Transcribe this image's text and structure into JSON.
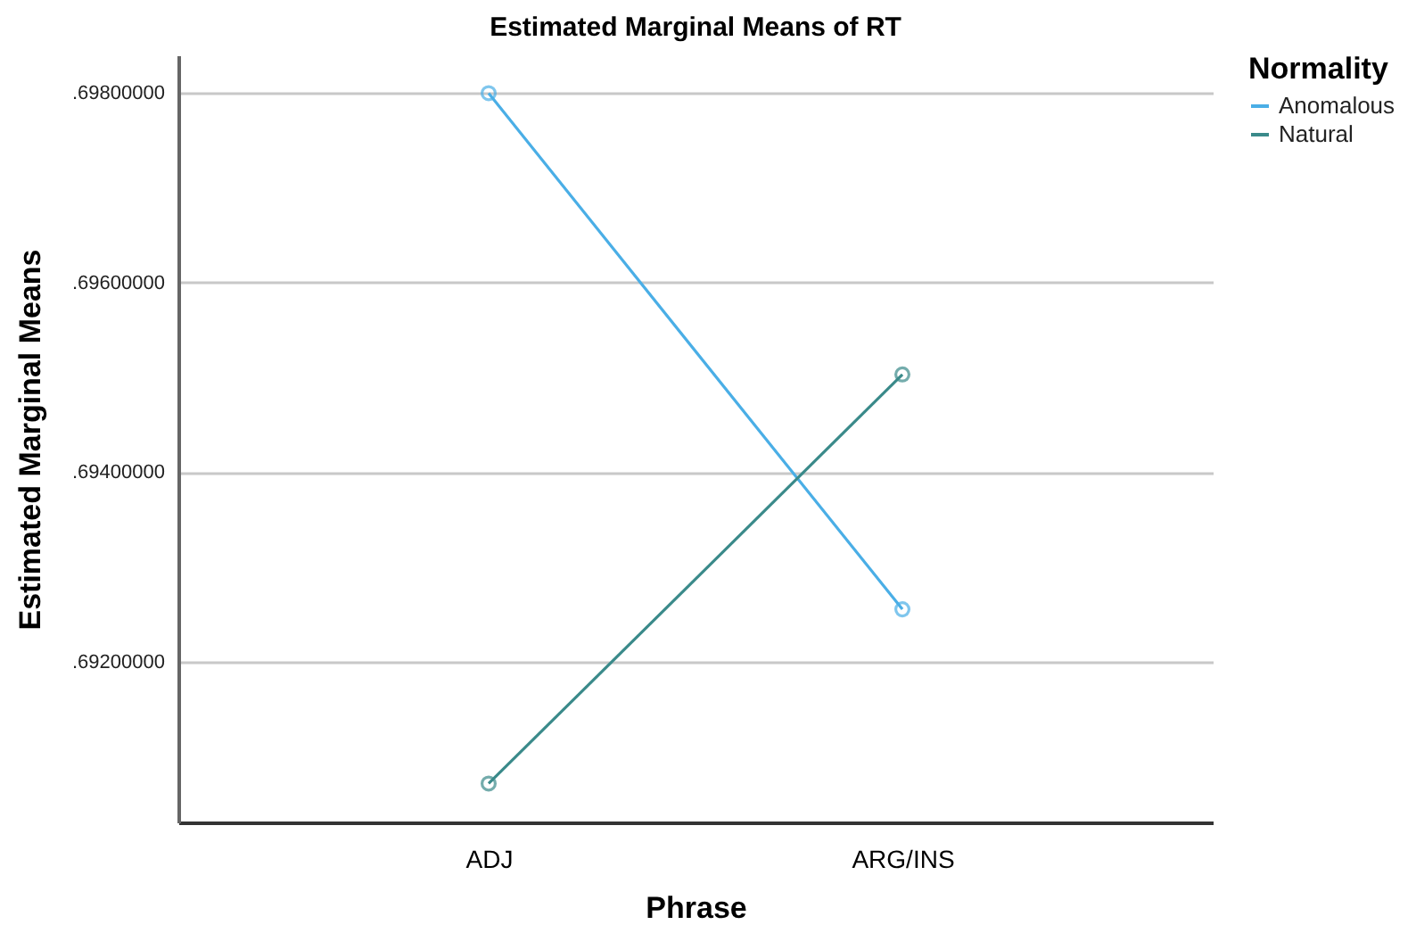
{
  "chart_data": {
    "type": "line",
    "title": "Estimated Marginal Means of RT",
    "xlabel": "Phrase",
    "ylabel": "Estimated Marginal Means",
    "legend_title": "Normality",
    "categories": [
      "ADJ",
      "ARG/INS"
    ],
    "series": [
      {
        "name": "Anomalous",
        "color": "#4aaee6",
        "values": [
          0.698,
          0.69255
        ]
      },
      {
        "name": "Natural",
        "color": "#3a8a8a",
        "values": [
          0.69071,
          0.69503
        ]
      }
    ],
    "ylim": [
      0.6903,
      0.6984
    ],
    "yticks": [
      {
        "value": 0.692,
        "label": ".69200000"
      },
      {
        "value": 0.694,
        "label": ".69400000"
      },
      {
        "value": 0.696,
        "label": ".69600000"
      },
      {
        "value": 0.698,
        "label": ".69800000"
      }
    ],
    "grid": "y",
    "legend": "top right",
    "marker": "circle",
    "line_style": "solid"
  }
}
